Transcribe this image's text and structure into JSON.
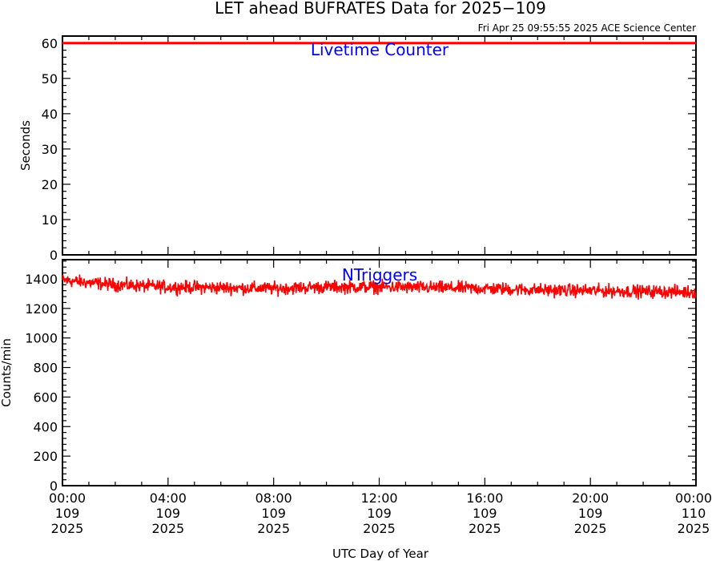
{
  "title": "LET ahead BUFRATES Data for 2025−109",
  "timestamp": "Fri Apr 25 09:55:55 2025 ACE Science Center",
  "xlabel": "UTC Day of Year",
  "x_ticks": [
    {
      "time": "00:00",
      "doy": "109",
      "year": "2025"
    },
    {
      "time": "04:00",
      "doy": "109",
      "year": "2025"
    },
    {
      "time": "08:00",
      "doy": "109",
      "year": "2025"
    },
    {
      "time": "12:00",
      "doy": "109",
      "year": "2025"
    },
    {
      "time": "16:00",
      "doy": "109",
      "year": "2025"
    },
    {
      "time": "20:00",
      "doy": "109",
      "year": "2025"
    },
    {
      "time": "00:00",
      "doy": "110",
      "year": "2025"
    }
  ],
  "colors": {
    "series": "#ff0000",
    "annotation": "#0000ff",
    "axes": "#000000",
    "background": "#ffffff"
  },
  "chart_data": [
    {
      "type": "line",
      "panel": "top",
      "annotation": "Livetime Counter",
      "ylabel": "Seconds",
      "xlim_hours": [
        0,
        24
      ],
      "ylim": [
        0,
        62
      ],
      "yticks": [
        0,
        10,
        20,
        30,
        40,
        50,
        60
      ],
      "grid": false,
      "series": [
        {
          "x_hours": [
            0,
            24
          ],
          "y": [
            60,
            60
          ]
        }
      ]
    },
    {
      "type": "line",
      "panel": "bottom",
      "annotation": "NTriggers",
      "ylabel": "Counts/min",
      "xlim_hours": [
        0,
        24
      ],
      "ylim": [
        0,
        1530
      ],
      "yticks": [
        0,
        200,
        400,
        600,
        800,
        1000,
        1200,
        1400
      ],
      "grid": false,
      "series": [
        {
          "x_hours": [
            0,
            2,
            4,
            6,
            8,
            10,
            12,
            14,
            16,
            18,
            20,
            22,
            24
          ],
          "y": [
            1390,
            1360,
            1345,
            1340,
            1335,
            1345,
            1345,
            1340,
            1335,
            1325,
            1320,
            1315,
            1310
          ],
          "noise": 40
        }
      ]
    }
  ]
}
